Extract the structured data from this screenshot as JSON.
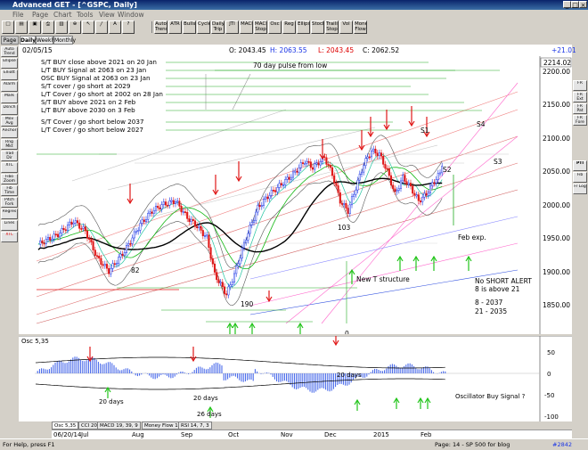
{
  "window": {
    "title": "Advanced GET - [^GSPC, Daily]"
  },
  "menu": [
    "File",
    "Page",
    "Chart",
    "Tools",
    "View",
    "Window"
  ],
  "toolbar": [
    "Auto Trend",
    "ATR",
    "Bullseye",
    "Cycles",
    "Daily Trip",
    "JTI",
    "MACD",
    "MACD Stop",
    "Osc",
    "Reg",
    "Ellipse",
    "Stock",
    "Trailing Stop",
    "Vol",
    "Money Flow"
  ],
  "period_tabs": {
    "daily": "Daily",
    "weekly": "Weekly",
    "monthly": "Monthly",
    "left": "Page 1"
  },
  "left_tools": [
    "Auto Trend",
    "Ellipse",
    "Elliott",
    "Alarm",
    "Mark",
    "Dsnch",
    "Mov Avg",
    "Anchor",
    "Rng Mkt",
    "Trad Dir",
    "XTL",
    "Fibo Zoom",
    "Fib Time",
    "Pitch Fork",
    "Regres",
    "Lines",
    "XTL"
  ],
  "right_tools": [
    "FR",
    "FR Ext",
    "FR Pat",
    "FR Fore",
    "PTI",
    "Fib",
    "Fr Log"
  ],
  "info": {
    "date": "02/05/15",
    "open": "O: 2043.45",
    "high": "H: 2063.55",
    "low": "L: 2043.45",
    "close": "C: 2062.52",
    "change": "+21.01"
  },
  "notes": [
    "S/T BUY close above 2021 on 20 Jan",
    "L/T BUY Signal at 2063 on 23 Jan",
    "OSC BUY Signal at 2063 on 23 Jan",
    "S/T cover / go short at 2029",
    "L/T Cover / go short at 2002 on 28 Jan",
    "S/T BUY above 2021 on 2 Feb",
    "L/T BUY above 2030 on 3 Feb",
    "S/T Cover / go short below 2037",
    "L/T Cover / go short below 2027"
  ],
  "chart_labels": {
    "pulse": "70 day pulse from low",
    "s1": "S1",
    "s2": "S2",
    "s3": "S3",
    "s4": "S4",
    "low82": "82",
    "low190": "190",
    "low103": "103",
    "feb_exp": "Feb exp.",
    "new_t": "New T structure",
    "zero": "0",
    "alert1": "No SHORT ALERT",
    "alert2": "8 is above 21",
    "lvl1": "8    - 2037",
    "lvl2": "21  - 2035"
  },
  "price_axis": {
    "ticks": [
      "2200.00",
      "2150.00",
      "2100.00",
      "2050.00",
      "2000.00",
      "1950.00",
      "1900.00",
      "1850.00"
    ],
    "current": "2214.02"
  },
  "oscillator": {
    "title": "Osc 5,35",
    "ticks": [
      "50",
      "0",
      "-50",
      "-100"
    ],
    "labels": {
      "d1": "20 days",
      "d2": "20 days",
      "d3": "26 days",
      "d4": "20 days",
      "buy": "Oscillator Buy Signal ?"
    }
  },
  "bottom_tabs": [
    "Osc 5,35",
    "CCI 20",
    "MACD 19, 39, 9",
    "Money Flow 11",
    "RSI 14, 7, 3"
  ],
  "x_axis": {
    "start": "06/20/14",
    "months": [
      "Jul",
      "Aug",
      "Sep",
      "Oct",
      "Nov",
      "Dec",
      "2015",
      "Feb"
    ]
  },
  "status": {
    "help": "For Help, press F1",
    "page": "Page: 14 - SP 500 for blog",
    "code": "#2842"
  },
  "colors": {
    "up": "#1a35e6",
    "down": "#e01818",
    "signal": "#22c41a",
    "arrow_down": "#e01818"
  }
}
